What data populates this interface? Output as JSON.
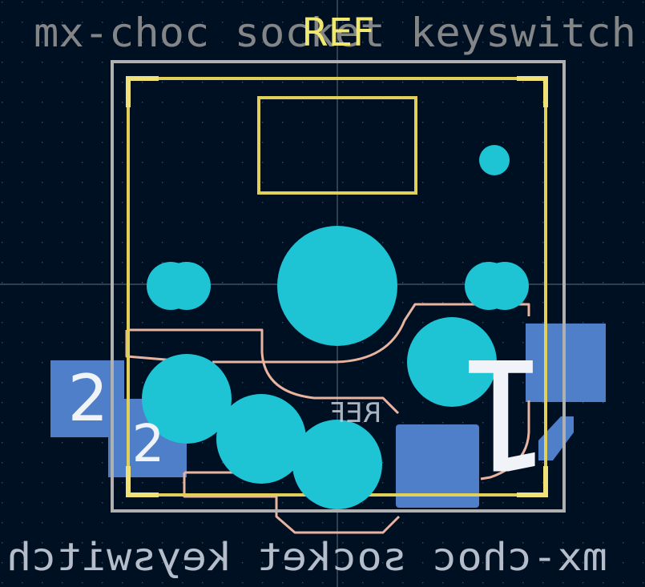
{
  "footprint": {
    "value_front": "mx-choc socket keyswitch",
    "value_back": "mx-choc socket keyswitch",
    "ref_front": "REF",
    "ref_back": "REF"
  },
  "pads": {
    "pad_1_label": "1",
    "pad_2_label": "2",
    "pad_2b_label": "2"
  },
  "colors": {
    "background": "#001023",
    "grid_dot": "#3a4a5e",
    "crosshair": "#8a94a4",
    "courtyard": "#b0b0b0",
    "silkscreen_front": "#e0d05a",
    "silkscreen_back": "#e8b4a0",
    "through_hole": "#1ec3d4",
    "smd_pad_back": "#4e7fc8",
    "text_value": "#8c8c8c",
    "text_ref": "#f0e870",
    "text_back": "#c8d0dc",
    "pad_label": "#f0f4f8"
  }
}
